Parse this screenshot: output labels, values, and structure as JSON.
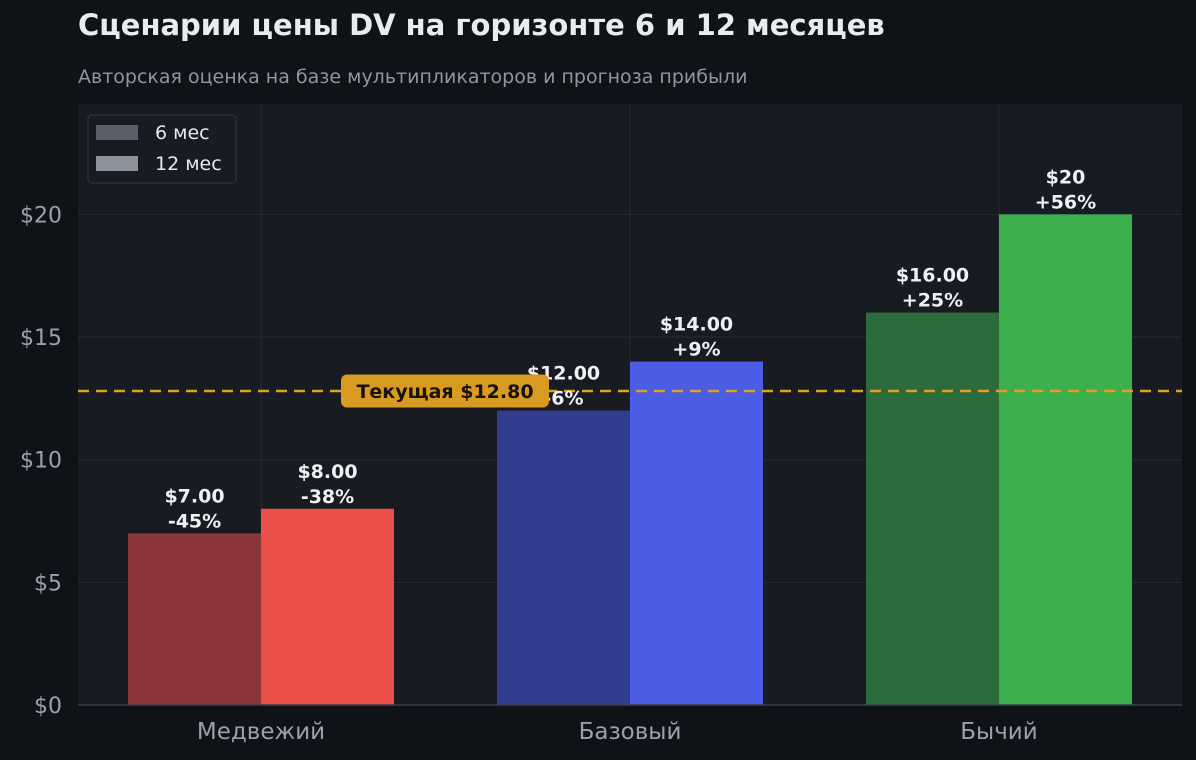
{
  "header": {
    "title": "Сценарии цены DV на горизонте 6 и 12 месяцев",
    "subtitle": "Авторская оценка на базе мультипликаторов и прогноза прибыли"
  },
  "chart_data": {
    "type": "bar",
    "title": "Сценарии цены DV на горизонте 6 и 12 месяцев",
    "subtitle": "Авторская оценка на базе мультипликаторов и прогноза прибыли",
    "categories": [
      "Медвежий",
      "Базовый",
      "Бычий"
    ],
    "series": [
      {
        "name": "6 мес",
        "values": [
          7.0,
          12.0,
          16.0
        ],
        "labels": [
          "$7.00\n-45%",
          "$12.00\n-6%",
          "$16.00\n+25%"
        ],
        "colors": [
          "#8b3739",
          "#323d8d",
          "#2c6b3b"
        ]
      },
      {
        "name": "12 мес",
        "values": [
          8.0,
          14.0,
          20.0
        ],
        "labels": [
          "$8.00\n-38%",
          "$14.00\n+9%",
          "$20\n+56%"
        ],
        "colors": [
          "#ea4f48",
          "#4b5ce5",
          "#3daf4c"
        ]
      }
    ],
    "ylim": [
      0,
      24.5
    ],
    "yticks": [
      0,
      5,
      10,
      15,
      20
    ],
    "ytick_labels": [
      "$0",
      "$5",
      "$10",
      "$15",
      "$20"
    ],
    "xlabel": "",
    "ylabel": "",
    "grid": true,
    "legend": {
      "position": "top-left",
      "entries": [
        {
          "label": "6 мес",
          "color": "#5a5f6b"
        },
        {
          "label": "12 мес",
          "color": "#8b929c"
        }
      ]
    },
    "reference_line": {
      "value": 12.8,
      "label": "Текущая $12.80",
      "color": "#e0a024"
    }
  }
}
